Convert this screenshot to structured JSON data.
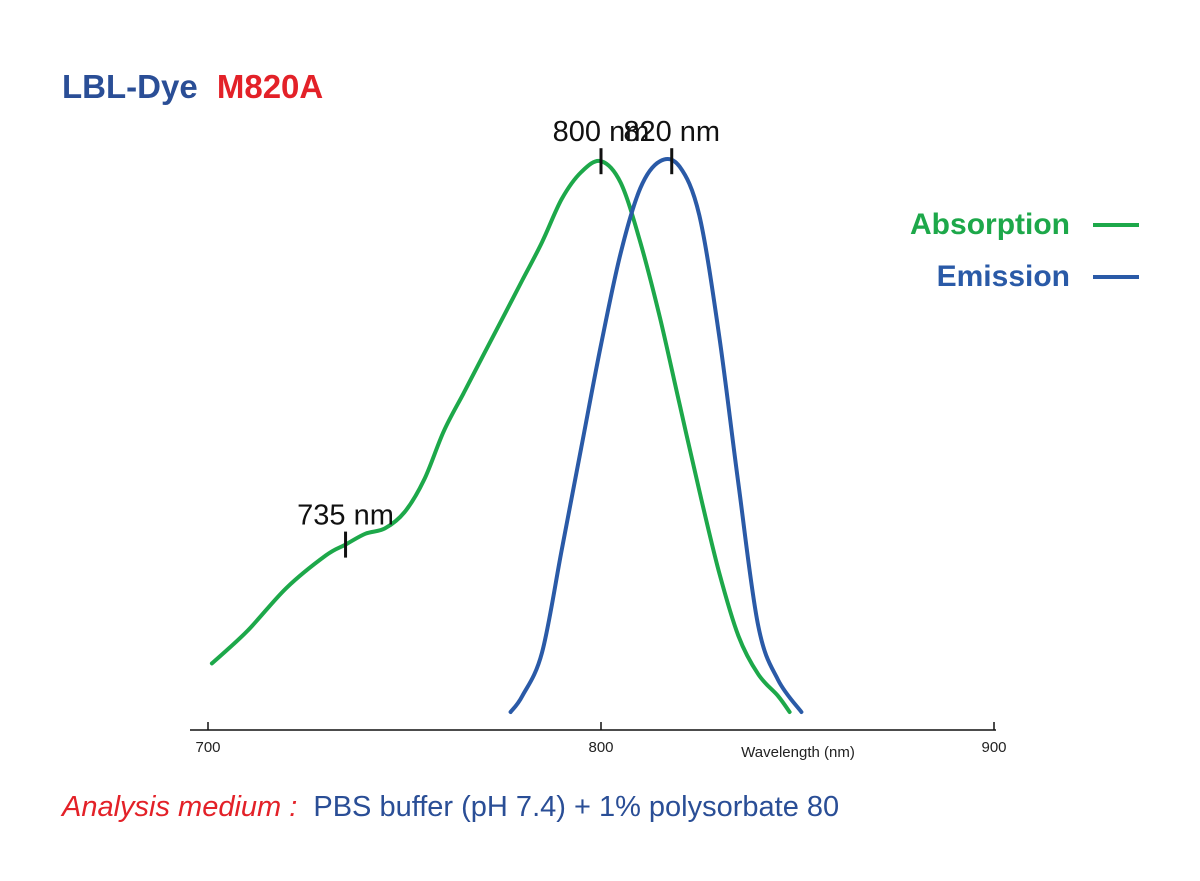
{
  "title": {
    "part1": "LBL-Dye",
    "part2": "M820A"
  },
  "colors": {
    "title_blue": "#2a4e96",
    "title_red": "#e32128",
    "absorption": "#1da84a",
    "emission": "#2a5aa7",
    "note_red": "#e32128",
    "note_blue": "#2a4e96"
  },
  "chart_data": {
    "type": "line",
    "xlabel": "Wavelength (nm)",
    "ylabel": "",
    "xlim": [
      700,
      900
    ],
    "ylim": [
      0,
      1
    ],
    "xticks": [
      "700",
      "800",
      "900"
    ],
    "grid": false,
    "legend_position": "top-right",
    "series": [
      {
        "name": "Absorption",
        "x": [
          701,
          710,
          720,
          730,
          735,
          740,
          745,
          750,
          755,
          760,
          765,
          770,
          775,
          780,
          785,
          790,
          795,
          800,
          805,
          810,
          815,
          820,
          825,
          830,
          835,
          840,
          845,
          848
        ],
        "y": [
          0.09,
          0.15,
          0.23,
          0.29,
          0.31,
          0.33,
          0.34,
          0.37,
          0.43,
          0.52,
          0.59,
          0.66,
          0.73,
          0.8,
          0.87,
          0.95,
          1.0,
          1.02,
          0.98,
          0.87,
          0.73,
          0.57,
          0.41,
          0.26,
          0.14,
          0.07,
          0.03,
          0.0
        ]
      },
      {
        "name": "Emission",
        "x": [
          777,
          780,
          785,
          790,
          795,
          800,
          805,
          810,
          815,
          820,
          825,
          830,
          835,
          840,
          845,
          851
        ],
        "y": [
          0.0,
          0.03,
          0.11,
          0.3,
          0.49,
          0.68,
          0.85,
          0.97,
          1.02,
          1.01,
          0.92,
          0.7,
          0.42,
          0.16,
          0.06,
          0.0
        ]
      }
    ],
    "annotations": [
      {
        "label": "735 nm",
        "x": 735,
        "y": 0.31,
        "series": "Absorption"
      },
      {
        "label": "800 nm",
        "x": 800,
        "y": 1.02,
        "series": "Absorption"
      },
      {
        "label": "820 nm",
        "x": 818,
        "y": 1.02,
        "series": "Emission"
      }
    ]
  },
  "note": {
    "label": "Analysis medium :",
    "text": "PBS buffer (pH 7.4) + 1% polysorbate 80"
  }
}
